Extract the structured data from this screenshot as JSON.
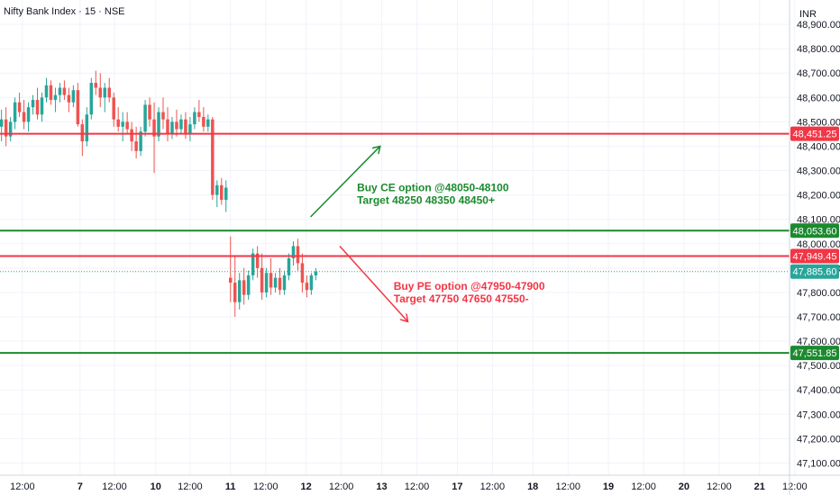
{
  "header": {
    "title": "Nifty Bank Index · 15 · NSE",
    "currency": "INR"
  },
  "colors": {
    "up": "#26a69a",
    "down": "#ef5350",
    "resistance": "#f23645",
    "support": "#1b8a2e",
    "price_line": "#26a69a",
    "grid": "#f0f3fa",
    "text": "#131722"
  },
  "chart_data": {
    "type": "candlestick",
    "ylim": [
      47050,
      49000
    ],
    "y_ticks": [
      47100,
      47200,
      47300,
      47400,
      47500,
      47600,
      47700,
      47800,
      47900,
      48000,
      48100,
      48200,
      48300,
      48400,
      48500,
      48600,
      48700,
      48800,
      48900
    ],
    "y_tick_labels": [
      "47,100.00",
      "47,200.00",
      "47,300.00",
      "47,400.00",
      "47,500.00",
      "47,600.00",
      "47,700.00",
      "47,800.00",
      "47,900.00",
      "48,000.00",
      "48,100.00",
      "48,200.00",
      "48,300.00",
      "48,400.00",
      "48,500.00",
      "48,600.00",
      "48,700.00",
      "48,800.00",
      "48,900.00"
    ],
    "xlim": [
      -0.3,
      10.25
    ],
    "x_ticks": [
      {
        "label": "12:00",
        "x": 0.0
      },
      {
        "label": "7",
        "x": 0.77
      },
      {
        "label": "12:00",
        "x": 1.23
      },
      {
        "label": "10",
        "x": 1.78
      },
      {
        "label": "12:00",
        "x": 2.24
      },
      {
        "label": "11",
        "x": 2.78
      },
      {
        "label": "12:00",
        "x": 3.25
      },
      {
        "label": "12",
        "x": 3.79
      },
      {
        "label": "12:00",
        "x": 4.26
      },
      {
        "label": "13",
        "x": 4.8
      },
      {
        "label": "12:00",
        "x": 5.27
      },
      {
        "label": "17",
        "x": 5.81
      },
      {
        "label": "12:00",
        "x": 6.28
      },
      {
        "label": "18",
        "x": 6.82
      },
      {
        "label": "12:00",
        "x": 7.29
      },
      {
        "label": "19",
        "x": 7.83
      },
      {
        "label": "12:00",
        "x": 8.3
      },
      {
        "label": "20",
        "x": 8.84
      },
      {
        "label": "12:00",
        "x": 9.31
      },
      {
        "label": "21",
        "x": 9.85
      },
      {
        "label": "12:00",
        "x": 10.32
      }
    ],
    "candles": [
      {
        "x": -0.28,
        "o": 48480,
        "h": 48550,
        "l": 48420,
        "c": 48510
      },
      {
        "x": -0.22,
        "o": 48510,
        "h": 48560,
        "l": 48400,
        "c": 48440
      },
      {
        "x": -0.16,
        "o": 48440,
        "h": 48520,
        "l": 48420,
        "c": 48500
      },
      {
        "x": -0.1,
        "o": 48500,
        "h": 48600,
        "l": 48470,
        "c": 48580
      },
      {
        "x": -0.04,
        "o": 48580,
        "h": 48620,
        "l": 48520,
        "c": 48540
      },
      {
        "x": 0.02,
        "o": 48540,
        "h": 48590,
        "l": 48470,
        "c": 48500
      },
      {
        "x": 0.08,
        "o": 48500,
        "h": 48580,
        "l": 48460,
        "c": 48560
      },
      {
        "x": 0.14,
        "o": 48560,
        "h": 48610,
        "l": 48530,
        "c": 48590
      },
      {
        "x": 0.2,
        "o": 48590,
        "h": 48640,
        "l": 48510,
        "c": 48530
      },
      {
        "x": 0.26,
        "o": 48530,
        "h": 48620,
        "l": 48500,
        "c": 48600
      },
      {
        "x": 0.32,
        "o": 48600,
        "h": 48680,
        "l": 48580,
        "c": 48650
      },
      {
        "x": 0.38,
        "o": 48650,
        "h": 48670,
        "l": 48570,
        "c": 48590
      },
      {
        "x": 0.44,
        "o": 48590,
        "h": 48640,
        "l": 48540,
        "c": 48610
      },
      {
        "x": 0.5,
        "o": 48610,
        "h": 48660,
        "l": 48580,
        "c": 48640
      },
      {
        "x": 0.56,
        "o": 48640,
        "h": 48670,
        "l": 48590,
        "c": 48610
      },
      {
        "x": 0.62,
        "o": 48610,
        "h": 48640,
        "l": 48540,
        "c": 48580
      },
      {
        "x": 0.68,
        "o": 48580,
        "h": 48650,
        "l": 48560,
        "c": 48630
      },
      {
        "x": 0.74,
        "o": 48630,
        "h": 48660,
        "l": 48480,
        "c": 48490
      },
      {
        "x": 0.8,
        "o": 48490,
        "h": 48510,
        "l": 48360,
        "c": 48420
      },
      {
        "x": 0.86,
        "o": 48420,
        "h": 48560,
        "l": 48400,
        "c": 48530
      },
      {
        "x": 0.92,
        "o": 48530,
        "h": 48680,
        "l": 48510,
        "c": 48660
      },
      {
        "x": 0.98,
        "o": 48660,
        "h": 48710,
        "l": 48610,
        "c": 48640
      },
      {
        "x": 1.04,
        "o": 48640,
        "h": 48700,
        "l": 48560,
        "c": 48600
      },
      {
        "x": 1.1,
        "o": 48600,
        "h": 48660,
        "l": 48540,
        "c": 48640
      },
      {
        "x": 1.16,
        "o": 48640,
        "h": 48680,
        "l": 48580,
        "c": 48600
      },
      {
        "x": 1.22,
        "o": 48600,
        "h": 48620,
        "l": 48480,
        "c": 48510
      },
      {
        "x": 1.28,
        "o": 48510,
        "h": 48560,
        "l": 48460,
        "c": 48480
      },
      {
        "x": 1.34,
        "o": 48480,
        "h": 48540,
        "l": 48420,
        "c": 48500
      },
      {
        "x": 1.4,
        "o": 48500,
        "h": 48540,
        "l": 48450,
        "c": 48470
      },
      {
        "x": 1.46,
        "o": 48470,
        "h": 48500,
        "l": 48380,
        "c": 48420
      },
      {
        "x": 1.52,
        "o": 48420,
        "h": 48480,
        "l": 48350,
        "c": 48380
      },
      {
        "x": 1.58,
        "o": 48380,
        "h": 48480,
        "l": 48360,
        "c": 48460
      },
      {
        "x": 1.64,
        "o": 48460,
        "h": 48590,
        "l": 48440,
        "c": 48570
      },
      {
        "x": 1.7,
        "o": 48570,
        "h": 48600,
        "l": 48480,
        "c": 48510
      },
      {
        "x": 1.76,
        "o": 48510,
        "h": 48580,
        "l": 48290,
        "c": 48440
      },
      {
        "x": 1.82,
        "o": 48440,
        "h": 48560,
        "l": 48420,
        "c": 48540
      },
      {
        "x": 1.88,
        "o": 48540,
        "h": 48600,
        "l": 48470,
        "c": 48510
      },
      {
        "x": 1.94,
        "o": 48510,
        "h": 48560,
        "l": 48420,
        "c": 48450
      },
      {
        "x": 2.0,
        "o": 48450,
        "h": 48520,
        "l": 48430,
        "c": 48500
      },
      {
        "x": 2.06,
        "o": 48500,
        "h": 48550,
        "l": 48440,
        "c": 48470
      },
      {
        "x": 2.12,
        "o": 48470,
        "h": 48530,
        "l": 48450,
        "c": 48510
      },
      {
        "x": 2.18,
        "o": 48510,
        "h": 48540,
        "l": 48430,
        "c": 48450
      },
      {
        "x": 2.24,
        "o": 48450,
        "h": 48520,
        "l": 48420,
        "c": 48490
      },
      {
        "x": 2.3,
        "o": 48490,
        "h": 48560,
        "l": 48470,
        "c": 48540
      },
      {
        "x": 2.36,
        "o": 48540,
        "h": 48590,
        "l": 48500,
        "c": 48520
      },
      {
        "x": 2.42,
        "o": 48520,
        "h": 48560,
        "l": 48460,
        "c": 48480
      },
      {
        "x": 2.48,
        "o": 48480,
        "h": 48530,
        "l": 48460,
        "c": 48510
      },
      {
        "x": 2.54,
        "o": 48510,
        "h": 48520,
        "l": 48180,
        "c": 48200
      },
      {
        "x": 2.6,
        "o": 48200,
        "h": 48260,
        "l": 48150,
        "c": 48240
      },
      {
        "x": 2.66,
        "o": 48240,
        "h": 48270,
        "l": 48160,
        "c": 48180
      },
      {
        "x": 2.72,
        "o": 48180,
        "h": 48260,
        "l": 48130,
        "c": 48230
      },
      {
        "x": 2.78,
        "o": 47860,
        "h": 48030,
        "l": 47760,
        "c": 47840
      },
      {
        "x": 2.84,
        "o": 47840,
        "h": 47950,
        "l": 47700,
        "c": 47760
      },
      {
        "x": 2.9,
        "o": 47760,
        "h": 47880,
        "l": 47730,
        "c": 47850
      },
      {
        "x": 2.96,
        "o": 47850,
        "h": 47900,
        "l": 47750,
        "c": 47790
      },
      {
        "x": 3.02,
        "o": 47790,
        "h": 47890,
        "l": 47770,
        "c": 47870
      },
      {
        "x": 3.08,
        "o": 47870,
        "h": 47980,
        "l": 47850,
        "c": 47960
      },
      {
        "x": 3.14,
        "o": 47960,
        "h": 47990,
        "l": 47860,
        "c": 47900
      },
      {
        "x": 3.2,
        "o": 47900,
        "h": 47960,
        "l": 47770,
        "c": 47800
      },
      {
        "x": 3.26,
        "o": 47800,
        "h": 47900,
        "l": 47780,
        "c": 47880
      },
      {
        "x": 3.32,
        "o": 47880,
        "h": 47940,
        "l": 47790,
        "c": 47820
      },
      {
        "x": 3.38,
        "o": 47820,
        "h": 47880,
        "l": 47800,
        "c": 47860
      },
      {
        "x": 3.44,
        "o": 47860,
        "h": 47900,
        "l": 47790,
        "c": 47810
      },
      {
        "x": 3.5,
        "o": 47810,
        "h": 47890,
        "l": 47790,
        "c": 47870
      },
      {
        "x": 3.56,
        "o": 47870,
        "h": 47960,
        "l": 47850,
        "c": 47940
      },
      {
        "x": 3.62,
        "o": 47940,
        "h": 48010,
        "l": 47910,
        "c": 47990
      },
      {
        "x": 3.68,
        "o": 47990,
        "h": 48020,
        "l": 47890,
        "c": 47920
      },
      {
        "x": 3.74,
        "o": 47920,
        "h": 47960,
        "l": 47800,
        "c": 47840
      },
      {
        "x": 3.8,
        "o": 47840,
        "h": 47870,
        "l": 47780,
        "c": 47810
      },
      {
        "x": 3.86,
        "o": 47810,
        "h": 47880,
        "l": 47790,
        "c": 47870
      },
      {
        "x": 3.92,
        "o": 47870,
        "h": 47900,
        "l": 47850,
        "c": 47885.6
      }
    ],
    "levels": [
      {
        "price": 48451.25,
        "label": "48,451.25",
        "kind": "resistance"
      },
      {
        "price": 48053.6,
        "label": "48,053.60",
        "kind": "support"
      },
      {
        "price": 47949.45,
        "label": "47,949.45",
        "kind": "resistance"
      },
      {
        "price": 47885.6,
        "label": "47,885.60",
        "kind": "last"
      },
      {
        "price": 47551.85,
        "label": "47,551.85",
        "kind": "support"
      }
    ],
    "arrows": [
      {
        "from": [
          3.85,
          48110
        ],
        "to": [
          4.78,
          48400
        ],
        "kind": "support"
      },
      {
        "from": [
          4.24,
          47990
        ],
        "to": [
          5.15,
          47680
        ],
        "kind": "resistance"
      }
    ],
    "annotations": [
      {
        "lines": [
          "Buy CE option @48050-48100",
          "Target 48250 48350 48450+"
        ],
        "x": 4.47,
        "y": 48215,
        "kind": "support"
      },
      {
        "lines": [
          "Buy PE option @47950-47900",
          "Target 47750 47650 47550-"
        ],
        "x": 4.96,
        "y": 47810,
        "kind": "resistance"
      }
    ]
  }
}
